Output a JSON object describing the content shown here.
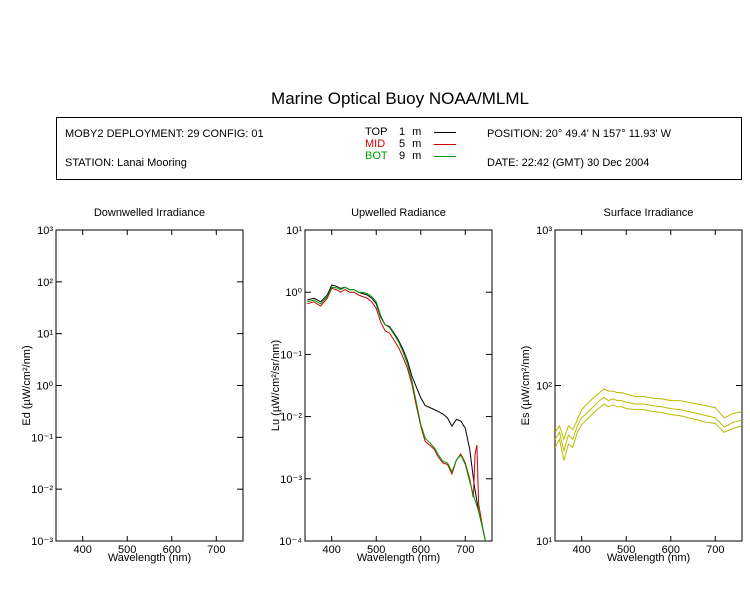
{
  "page": {
    "title": "Marine Optical Buoy NOAA/MLML"
  },
  "info": {
    "deployment": "MOBY2 DEPLOYMENT: 29 CONFIG: 01",
    "station": "STATION: Lanai Mooring",
    "position": "POSITION: 20° 49.4' N   157° 11.93' W",
    "date": "DATE: 22:42 (GMT) 30 Dec 2004",
    "legend": [
      {
        "label": "TOP",
        "depth": "1",
        "unit": "m",
        "color": "#000000"
      },
      {
        "label": "MID",
        "depth": "5",
        "unit": "m",
        "color": "#cc0000"
      },
      {
        "label": "BOT",
        "depth": "9",
        "unit": "m",
        "color": "#009900"
      }
    ]
  },
  "chart_data": [
    {
      "type": "line",
      "title": "Downwelled Irradiance",
      "xlabel": "Wavelength (nm)",
      "ylabel": "Ed  (µW/cm²/nm)",
      "xlim": [
        340,
        760
      ],
      "xticks": [
        400,
        500,
        600,
        700
      ],
      "ylim": [
        0.001,
        1000
      ],
      "yscale": "log",
      "ytick_exponents": [
        -3,
        -2,
        -1,
        0,
        1,
        2,
        3
      ],
      "series": []
    },
    {
      "type": "line",
      "title": "Upwelled Radiance",
      "xlabel": "Wavelength (nm)",
      "ylabel": "Lu  (µW/cm²/sr/nm)",
      "xlim": [
        340,
        760
      ],
      "xticks": [
        400,
        500,
        600,
        700
      ],
      "ylim": [
        0.0001,
        10
      ],
      "yscale": "log",
      "ytick_exponents": [
        -4,
        -3,
        -2,
        -1,
        0,
        1
      ],
      "series": [
        {
          "name": "TOP",
          "color": "#000000",
          "x": [
            345,
            360,
            375,
            390,
            400,
            410,
            420,
            430,
            440,
            450,
            460,
            470,
            480,
            490,
            500,
            510,
            520,
            530,
            540,
            550,
            560,
            570,
            580,
            590,
            600,
            610,
            620,
            630,
            640,
            650,
            660,
            670,
            680,
            690,
            700,
            710,
            720,
            730,
            740,
            745
          ],
          "y": [
            0.75,
            0.8,
            0.7,
            0.9,
            1.3,
            1.25,
            1.15,
            1.2,
            1.1,
            1.1,
            1.0,
            0.95,
            0.9,
            0.8,
            0.65,
            0.4,
            0.3,
            0.28,
            0.22,
            0.17,
            0.12,
            0.08,
            0.045,
            0.03,
            0.02,
            0.015,
            0.014,
            0.013,
            0.012,
            0.011,
            0.0095,
            0.007,
            0.009,
            0.0085,
            0.0065,
            0.003,
            0.0008,
            0.0003,
            0.00015,
            0.0001
          ]
        },
        {
          "name": "MID",
          "color": "#cc0000",
          "x": [
            345,
            360,
            375,
            390,
            400,
            410,
            420,
            430,
            440,
            450,
            460,
            470,
            480,
            490,
            500,
            510,
            520,
            530,
            540,
            550,
            560,
            570,
            580,
            590,
            600,
            610,
            620,
            630,
            640,
            650,
            660,
            670,
            680,
            690,
            700,
            710,
            718,
            722,
            726,
            730,
            740,
            745
          ],
          "y": [
            0.65,
            0.7,
            0.6,
            0.8,
            1.15,
            1.1,
            1.0,
            1.1,
            1.0,
            1.0,
            0.9,
            0.85,
            0.8,
            0.7,
            0.55,
            0.33,
            0.24,
            0.22,
            0.17,
            0.13,
            0.09,
            0.06,
            0.033,
            0.015,
            0.007,
            0.004,
            0.0035,
            0.003,
            0.0022,
            0.0018,
            0.0017,
            0.0012,
            0.002,
            0.0025,
            0.0018,
            0.001,
            0.0005,
            0.0025,
            0.0035,
            0.0004,
            0.00015,
            0.0001
          ]
        },
        {
          "name": "BOT",
          "color": "#009900",
          "x": [
            345,
            360,
            375,
            390,
            400,
            410,
            420,
            430,
            440,
            450,
            460,
            470,
            480,
            490,
            500,
            510,
            520,
            530,
            540,
            550,
            560,
            570,
            580,
            590,
            600,
            610,
            620,
            630,
            640,
            650,
            660,
            670,
            680,
            690,
            700,
            710,
            720,
            730,
            740,
            745
          ],
          "y": [
            0.7,
            0.75,
            0.65,
            0.85,
            1.2,
            1.18,
            1.1,
            1.2,
            1.1,
            1.1,
            1.0,
            1.0,
            0.95,
            0.85,
            0.7,
            0.42,
            0.3,
            0.27,
            0.21,
            0.16,
            0.11,
            0.07,
            0.038,
            0.017,
            0.0075,
            0.0045,
            0.0038,
            0.0032,
            0.0024,
            0.0019,
            0.0018,
            0.0013,
            0.002,
            0.0024,
            0.0017,
            0.0009,
            0.0005,
            0.0003,
            0.00015,
            0.0001
          ]
        }
      ]
    },
    {
      "type": "line",
      "title": "Surface Irradiance",
      "xlabel": "Wavelength (nm)",
      "ylabel": "Es  (µW/cm²/nm)",
      "xlim": [
        340,
        760
      ],
      "xticks": [
        400,
        500,
        600,
        700
      ],
      "ylim": [
        10,
        1000
      ],
      "yscale": "log",
      "ytick_exponents": [
        1,
        2,
        3
      ],
      "series": [
        {
          "name": "",
          "color": "#bbbb00",
          "x": [
            340,
            350,
            360,
            370,
            380,
            390,
            400,
            410,
            420,
            430,
            440,
            450,
            460,
            470,
            480,
            490,
            500,
            520,
            540,
            560,
            580,
            600,
            620,
            640,
            660,
            680,
            700,
            720,
            740,
            760
          ],
          "y": [
            50,
            55,
            45,
            55,
            52,
            60,
            70,
            75,
            80,
            85,
            90,
            95,
            92,
            92,
            90,
            90,
            88,
            85,
            85,
            83,
            82,
            80,
            80,
            78,
            76,
            74,
            72,
            62,
            66,
            68
          ]
        },
        {
          "name": "",
          "color": "#bbbb00",
          "x": [
            340,
            350,
            360,
            370,
            380,
            390,
            400,
            410,
            420,
            430,
            440,
            450,
            460,
            470,
            480,
            490,
            500,
            520,
            540,
            560,
            580,
            600,
            620,
            640,
            660,
            680,
            700,
            720,
            740,
            760
          ],
          "y": [
            45,
            50,
            38,
            48,
            45,
            55,
            62,
            66,
            70,
            75,
            80,
            84,
            80,
            82,
            80,
            80,
            78,
            76,
            76,
            74,
            73,
            71,
            70,
            68,
            66,
            64,
            62,
            54,
            58,
            60
          ]
        },
        {
          "name": "",
          "color": "#bbbb00",
          "x": [
            340,
            350,
            360,
            370,
            380,
            390,
            400,
            410,
            420,
            430,
            440,
            450,
            460,
            470,
            480,
            490,
            500,
            520,
            540,
            560,
            580,
            600,
            620,
            640,
            660,
            680,
            700,
            720,
            740,
            760
          ],
          "y": [
            40,
            45,
            33,
            42,
            40,
            50,
            56,
            60,
            64,
            68,
            72,
            76,
            73,
            75,
            73,
            73,
            71,
            70,
            70,
            68,
            67,
            65,
            64,
            62,
            60,
            58,
            57,
            50,
            53,
            55
          ]
        }
      ]
    }
  ]
}
